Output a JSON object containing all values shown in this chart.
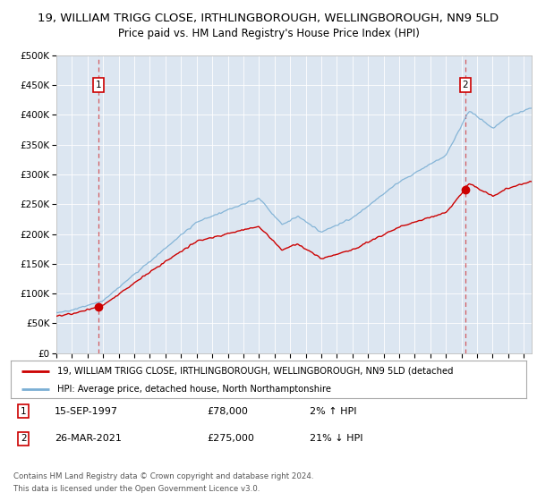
{
  "title": "19, WILLIAM TRIGG CLOSE, IRTHLINGBOROUGH, WELLINGBOROUGH, NN9 5LD",
  "subtitle": "Price paid vs. HM Land Registry's House Price Index (HPI)",
  "ylim": [
    0,
    500000
  ],
  "yticks": [
    0,
    50000,
    100000,
    150000,
    200000,
    250000,
    300000,
    350000,
    400000,
    450000,
    500000
  ],
  "ytick_labels": [
    "£0",
    "£50K",
    "£100K",
    "£150K",
    "£200K",
    "£250K",
    "£300K",
    "£350K",
    "£400K",
    "£450K",
    "£500K"
  ],
  "xlim_start": 1995.0,
  "xlim_end": 2025.5,
  "plot_bg_color": "#dce6f1",
  "grid_color": "#ffffff",
  "sale1_x": 1997.71,
  "sale1_y": 78000,
  "sale2_x": 2021.23,
  "sale2_y": 275000,
  "sale1_label": "15-SEP-1997",
  "sale1_price": "£78,000",
  "sale1_hpi": "2% ↑ HPI",
  "sale2_label": "26-MAR-2021",
  "sale2_price": "£275,000",
  "sale2_hpi": "21% ↓ HPI",
  "legend_line1": "19, WILLIAM TRIGG CLOSE, IRTHLINGBOROUGH, WELLINGBOROUGH, NN9 5LD (detached",
  "legend_line2": "HPI: Average price, detached house, North Northamptonshire",
  "footer1": "Contains HM Land Registry data © Crown copyright and database right 2024.",
  "footer2": "This data is licensed under the Open Government Licence v3.0.",
  "red_color": "#cc0000",
  "blue_color": "#7bafd4",
  "title_fontsize": 9.5,
  "subtitle_fontsize": 8.5,
  "axis_fontsize": 7.5
}
